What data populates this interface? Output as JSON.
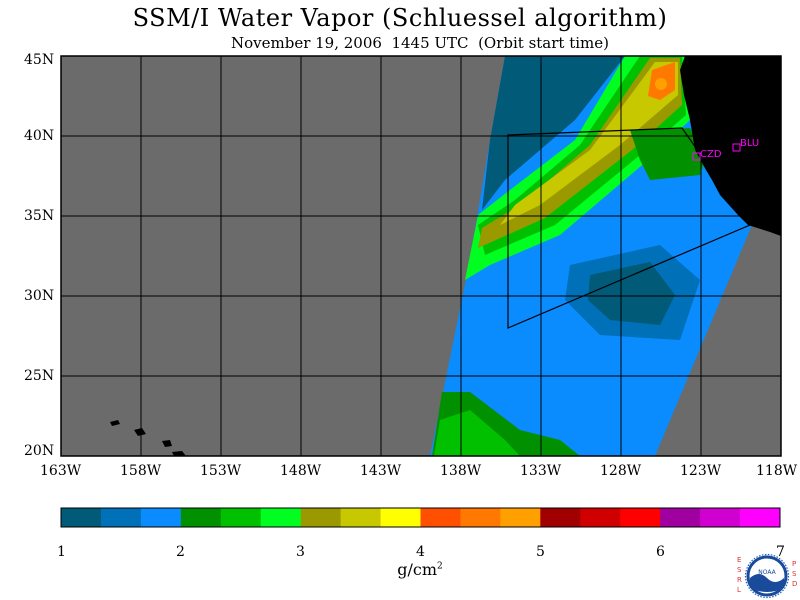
{
  "title": "SSM/I Water Vapor (Schluessel algorithm)",
  "subtitle": "November 19, 2006  1445 UTC  (Orbit start time)",
  "map": {
    "lon_labels": [
      "163W",
      "158W",
      "153W",
      "148W",
      "143W",
      "138W",
      "133W",
      "128W",
      "123W",
      "118W"
    ],
    "lat_labels": [
      "45N",
      "40N",
      "35N",
      "30N",
      "25N",
      "20N"
    ],
    "colors": {
      "land": "#000000",
      "no_data": "#6b6b6b",
      "grid": "#000000"
    },
    "stations": [
      {
        "label": "CZD",
        "color": "#ff00ff"
      },
      {
        "label": "BLU",
        "color": "#ff00ff"
      }
    ]
  },
  "colorbar": {
    "colors": [
      "#005a78",
      "#0070b8",
      "#0a8cff",
      "#009000",
      "#00c000",
      "#00ff20",
      "#9a9a00",
      "#c8c800",
      "#ffff00",
      "#ff5000",
      "#ff7800",
      "#ffa000",
      "#a00000",
      "#d00000",
      "#ff0000",
      "#a000a0",
      "#d000d0",
      "#ff00ff"
    ],
    "ticks": [
      "1",
      "2",
      "3",
      "4",
      "5",
      "6",
      "7"
    ],
    "unit_main": "g/cm",
    "unit_sup": "2"
  },
  "badge": {
    "left_letters": "ESRL",
    "right_letters": "PSD",
    "logo_text": "NOAA"
  }
}
